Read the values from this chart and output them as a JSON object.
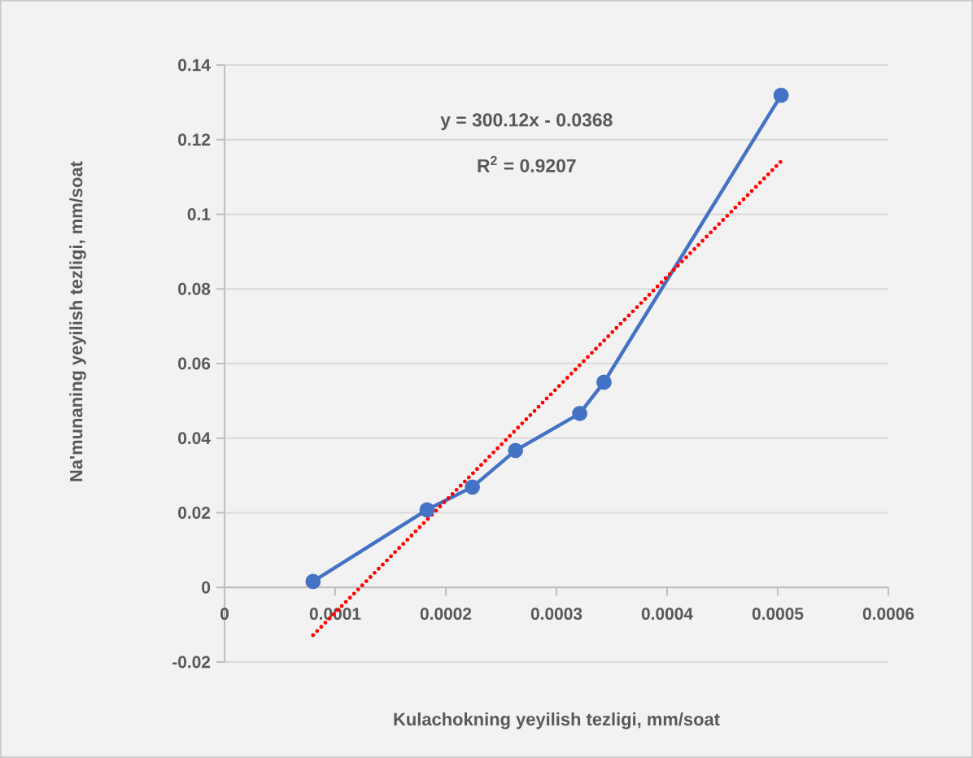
{
  "chart_data": {
    "type": "line",
    "xlabel": "Kulachokning yeyilish tezligi, mm/soat",
    "ylabel": "Na'munaning yeyilish tezligi, mm/soat",
    "annotations": [
      "y = 300.12x - 0.0368",
      "R$^{2}$ = 0.9207"
    ],
    "series": [
      {
        "type": "line",
        "color": "#4472c4",
        "marker": "circle",
        "line_style": "solid",
        "x": [
          8e-05,
          0.000183,
          0.000224,
          0.000263,
          0.000321,
          0.000343,
          0.000503
        ],
        "values": [
          0.0016,
          0.0208,
          0.0269,
          0.0367,
          0.0466,
          0.055,
          0.1319
        ]
      },
      {
        "type": "line",
        "color": "#ff0000",
        "marker": "none",
        "line_style": "dotted",
        "x": [
          8e-05,
          0.000503
        ],
        "values": [
          -0.0128,
          0.1142
        ]
      }
    ],
    "xlim": [
      0,
      0.0006
    ],
    "ylim": [
      -0.02,
      0.14
    ],
    "xticks": [
      0,
      0.0001,
      0.0002,
      0.0003,
      0.0004,
      0.0005,
      0.0006
    ],
    "yticks": [
      -0.02,
      0,
      0.02,
      0.04,
      0.06,
      0.08,
      0.1,
      0.12,
      0.14
    ],
    "grid": "y"
  }
}
